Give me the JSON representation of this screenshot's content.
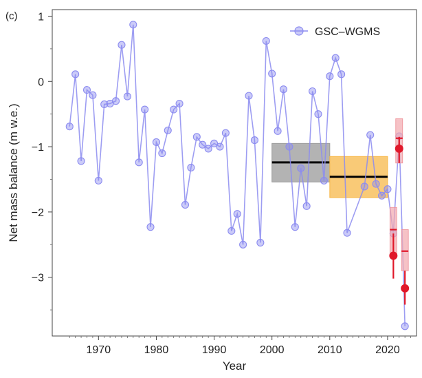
{
  "panel_label": "(c)",
  "chart_data": {
    "type": "line",
    "xlabel": "Year",
    "ylabel": "Net mass balance (m w.e.)",
    "xlim": [
      1962,
      2025
    ],
    "ylim": [
      -3.9,
      1.1
    ],
    "x_ticks": [
      1970,
      1980,
      1990,
      2000,
      2010,
      2020
    ],
    "y_ticks": [
      1,
      0,
      -1,
      -2,
      -3
    ],
    "y_tick_labels": [
      "1",
      "0",
      "−1",
      "−2",
      "−3"
    ],
    "grid": false,
    "legend_position": "top-right",
    "series": [
      {
        "name": "GSC–WGMS",
        "color": "#8c8cf0",
        "x": [
          1965,
          1966,
          1967,
          1968,
          1969,
          1970,
          1971,
          1972,
          1973,
          1974,
          1975,
          1976,
          1977,
          1978,
          1979,
          1980,
          1981,
          1982,
          1983,
          1984,
          1985,
          1986,
          1987,
          1988,
          1989,
          1990,
          1991,
          1992,
          1993,
          1994,
          1995,
          1996,
          1997,
          1998,
          1999,
          2000,
          2001,
          2002,
          2003,
          2004,
          2005,
          2006,
          2007,
          2008,
          2009,
          2010,
          2011,
          2012,
          2013,
          2016,
          2017,
          2018,
          2019,
          2020,
          2021,
          2022,
          2023
        ],
        "y": [
          -0.69,
          0.11,
          -1.22,
          -0.13,
          -0.21,
          -1.52,
          -0.35,
          -0.34,
          -0.3,
          0.56,
          -0.23,
          0.87,
          -1.24,
          -0.43,
          -2.23,
          -0.93,
          -1.1,
          -0.75,
          -0.43,
          -0.34,
          -1.89,
          -1.32,
          -0.85,
          -0.97,
          -1.03,
          -0.95,
          -1.0,
          -0.79,
          -2.29,
          -2.03,
          -2.5,
          -0.22,
          -0.9,
          -2.47,
          0.62,
          0.12,
          -0.76,
          -0.12,
          -1.0,
          -2.23,
          -1.33,
          -1.91,
          -0.15,
          -0.5,
          -1.52,
          0.08,
          0.36,
          0.11,
          -2.32,
          -1.61,
          -0.82,
          -1.57,
          -1.75,
          -1.65,
          -2.33,
          -0.84,
          -3.75
        ]
      }
    ],
    "period_boxes": [
      {
        "x_start": 2000,
        "x_end": 2010,
        "mean": -1.24,
        "low": -1.54,
        "high": -0.95,
        "fill": "#9a9a9a"
      },
      {
        "x_start": 2010,
        "x_end": 2020,
        "mean": -1.46,
        "low": -1.78,
        "high": -1.15,
        "fill": "#f7b84a"
      }
    ],
    "red_points": [
      {
        "x": 2021,
        "y": -2.67,
        "err_low": -3.02,
        "err_high": -2.33,
        "box_low": -2.66,
        "box_high": -1.93,
        "box_mark": -2.27
      },
      {
        "x": 2022,
        "y": -1.03,
        "err_low": -1.25,
        "err_high": -0.85,
        "box_low": -1.25,
        "box_high": -0.57,
        "box_mark": -0.87
      },
      {
        "x": 2023,
        "y": -3.17,
        "err_low": -3.42,
        "err_high": -2.9,
        "box_low": -2.9,
        "box_high": -2.27,
        "box_mark": -2.6
      }
    ],
    "red_color": "#e0182a"
  }
}
